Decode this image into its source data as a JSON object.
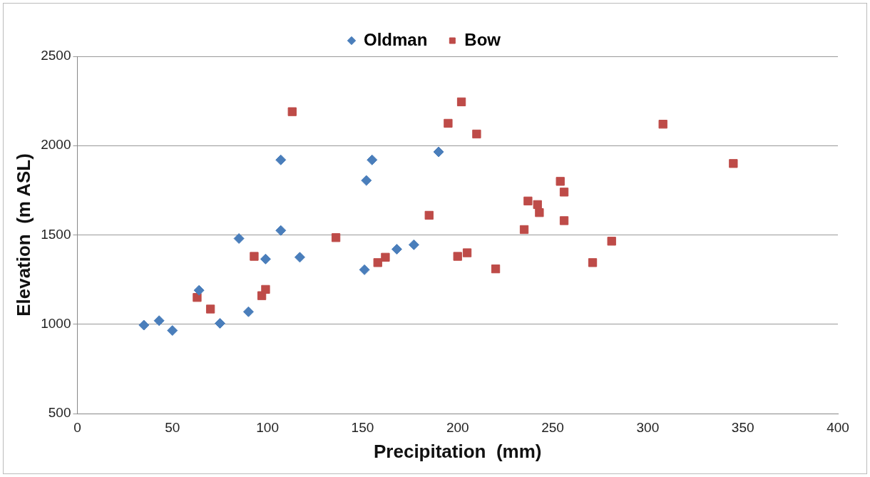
{
  "chart_data": {
    "type": "scatter",
    "xlabel": "Precipitation  (mm)",
    "ylabel": "Elevation  (m ASL)",
    "xlim": [
      0,
      400
    ],
    "xticks": [
      0,
      50,
      100,
      150,
      200,
      250,
      300,
      350,
      400
    ],
    "ylim": [
      500,
      2500
    ],
    "yticks": [
      500,
      1000,
      1500,
      2000,
      2500
    ],
    "grid": "y",
    "legend": "top",
    "series": [
      {
        "name": "Oldman",
        "color": "#4a7ebb",
        "marker": "diamond",
        "x": [
          35,
          43,
          50,
          64,
          75,
          85,
          90,
          99,
          107,
          107,
          117,
          151,
          152,
          155,
          168,
          177,
          190
        ],
        "values": [
          995,
          1020,
          965,
          1190,
          1005,
          1480,
          1070,
          1365,
          1920,
          1525,
          1375,
          1305,
          1805,
          1920,
          1420,
          1445,
          1965
        ]
      },
      {
        "name": "Bow",
        "color": "#be4b48",
        "marker": "square",
        "x": [
          63,
          70,
          93,
          97,
          99,
          113,
          136,
          158,
          162,
          185,
          195,
          202,
          200,
          205,
          210,
          220,
          235,
          237,
          242,
          243,
          254,
          256,
          256,
          271,
          281,
          308,
          345
        ],
        "values": [
          1150,
          1085,
          1380,
          1160,
          1195,
          2190,
          1485,
          1345,
          1375,
          1610,
          2125,
          2245,
          1380,
          1400,
          2065,
          1310,
          1530,
          1690,
          1670,
          1625,
          1800,
          1740,
          1580,
          1345,
          1465,
          2120,
          1900
        ]
      }
    ]
  }
}
